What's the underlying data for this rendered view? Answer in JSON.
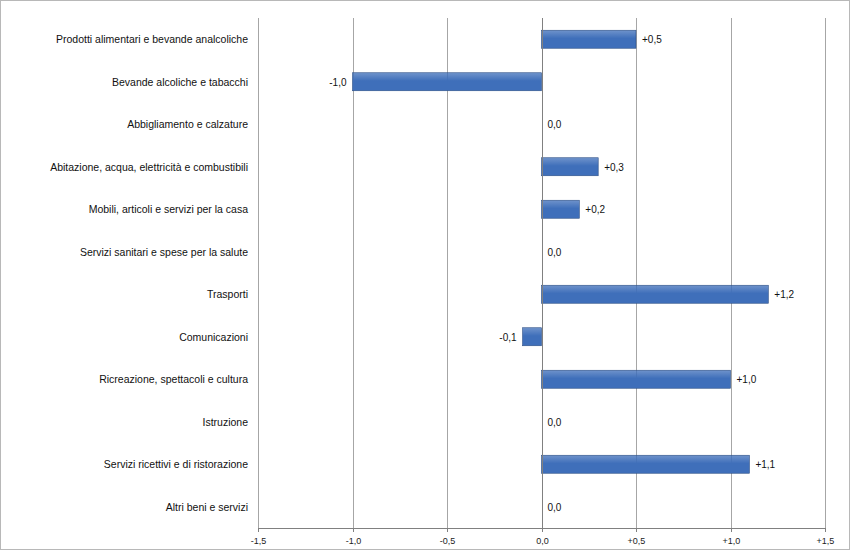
{
  "chart_data": {
    "type": "bar",
    "orientation": "horizontal",
    "categories": [
      "Prodotti alimentari e bevande analcoliche",
      "Bevande alcoliche e tabacchi",
      "Abbigliamento e calzature",
      "Abitazione, acqua, elettricità e combustibili",
      "Mobili, articoli e servizi per la casa",
      "Servizi sanitari e spese per la salute",
      "Trasporti",
      "Comunicazioni",
      "Ricreazione, spettacoli e cultura",
      "Istruzione",
      "Servizi ricettivi e di ristorazione",
      "Altri beni e servizi"
    ],
    "values": [
      0.5,
      -1.0,
      0,
      0.3,
      0.2,
      0,
      1.2,
      -0.1,
      1.0,
      0,
      1.1,
      0
    ],
    "value_labels": [
      "+0,5",
      "-1,0",
      "0,0",
      "+0,3",
      "+0,2",
      "0,0",
      "+1,2",
      "-0,1",
      "+1,0",
      "0,0",
      "+1,1",
      "0,0"
    ],
    "color": "#3f6fba",
    "xlim": [
      -1.5,
      1.5
    ],
    "xticks": [
      {
        "value": -1.5,
        "label": "-1,5"
      },
      {
        "value": -1.0,
        "label": "-1,0"
      },
      {
        "value": -0.5,
        "label": "-0,5"
      },
      {
        "value": 0,
        "label": "0,0"
      },
      {
        "value": 0.5,
        "label": "+0,5"
      },
      {
        "value": 1.0,
        "label": "+1,0"
      },
      {
        "value": 1.5,
        "label": "+1,5"
      }
    ],
    "grid": true,
    "data_labels": true
  }
}
